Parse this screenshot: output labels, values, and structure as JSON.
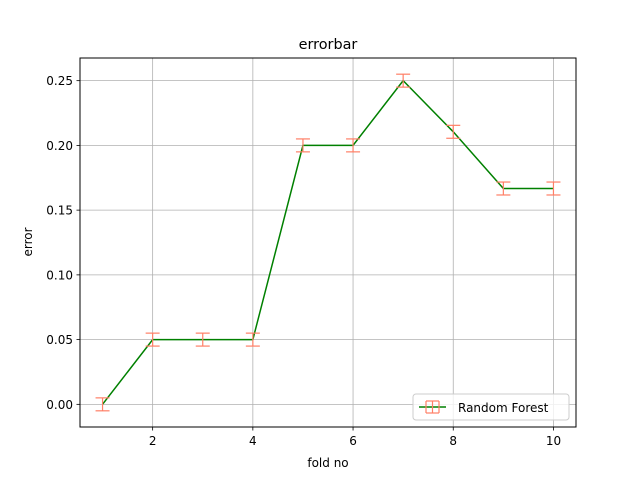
{
  "chart_data": {
    "type": "line",
    "title": "errorbar",
    "xlabel": "fold no",
    "ylabel": "error",
    "xlim": [
      0.55,
      10.45
    ],
    "ylim": [
      -0.0175,
      0.2675
    ],
    "xticks": [
      2,
      4,
      6,
      8,
      10
    ],
    "xtick_labels": [
      "2",
      "4",
      "6",
      "8",
      "10"
    ],
    "yticks": [
      0.0,
      0.05,
      0.1,
      0.15,
      0.2,
      0.25
    ],
    "ytick_labels": [
      "0.00",
      "0.05",
      "0.10",
      "0.15",
      "0.20",
      "0.25"
    ],
    "grid": true,
    "legend_position": "lower-right",
    "series": [
      {
        "name": "Random Forest",
        "x": [
          1,
          2,
          3,
          4,
          5,
          6,
          7,
          8,
          9,
          10
        ],
        "y": [
          0.0,
          0.05,
          0.05,
          0.05,
          0.2,
          0.2,
          0.25,
          0.2105,
          0.1667,
          0.1667
        ],
        "yerr": [
          0.005,
          0.005,
          0.005,
          0.005,
          0.005,
          0.005,
          0.005,
          0.005,
          0.005,
          0.005
        ],
        "line_color": "#008000",
        "errorbar_color": "#ff7f66"
      }
    ]
  }
}
